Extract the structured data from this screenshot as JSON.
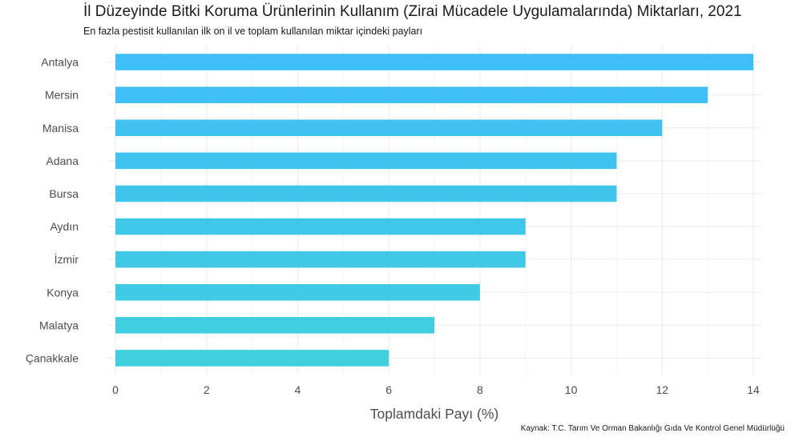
{
  "title": "İl Düzeyinde Bitki Koruma Ürünlerinin Kullanım (Zirai Mücadele Uygulamalarında) Miktarları, 2021",
  "subtitle": "En fazla pestisit kullanılan ilk on il ve toplam kullanılan miktar içindeki payları",
  "caption": "Kaynak: T.C. Tarım Ve Orman Bakanlığı Gıda Ve Kontrol Genel Müdürlüğü",
  "chart_data": {
    "type": "bar",
    "orientation": "horizontal",
    "categories": [
      "Antalya",
      "Mersin",
      "Manisa",
      "Adana",
      "Bursa",
      "Aydın",
      "İzmir",
      "Konya",
      "Malatya",
      "Çanakkale"
    ],
    "values": [
      14,
      13,
      12,
      11,
      11,
      9,
      9,
      8,
      7,
      6
    ],
    "colors": [
      "#3fbff8",
      "#3fbff5",
      "#3fc1f2",
      "#3fc3ef",
      "#3fc5ec",
      "#3fc7e9",
      "#3fc9e6",
      "#3fcbe3",
      "#3fcde0",
      "#3fcfdd"
    ],
    "xlabel": "Toplamdaki Payı (%)",
    "ylabel": "",
    "xticks": [
      0,
      2,
      4,
      6,
      8,
      10,
      12,
      14
    ],
    "xlim": [
      0,
      14
    ],
    "grid": true,
    "legend": "none"
  }
}
